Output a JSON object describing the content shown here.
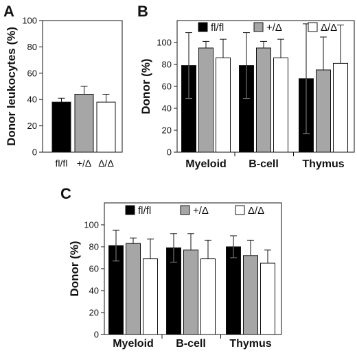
{
  "colors": {
    "fl_fl": "#000000",
    "het": "#a6a6a6",
    "null": "#ffffff",
    "stroke": "#111111"
  },
  "chart_data": [
    {
      "panel": "A",
      "type": "bar",
      "ylabel": "Donor leukocytes (%)",
      "ylim": [
        0,
        100
      ],
      "yticks": [
        0,
        20,
        40,
        60,
        80,
        100
      ],
      "categories": [
        "fl/fl",
        "+/Δ",
        "Δ/Δ"
      ],
      "values": [
        38,
        44,
        38
      ],
      "errors": [
        3,
        6,
        6
      ],
      "legend": "none"
    },
    {
      "panel": "B",
      "type": "bar",
      "ylabel": "Donor (%)",
      "ylim": [
        0,
        120
      ],
      "yticks": [
        0,
        20,
        40,
        60,
        80,
        100
      ],
      "categories": [
        "Myeloid",
        "B-cell",
        "Thymus"
      ],
      "series": [
        {
          "name": "fl/fl",
          "values": [
            79,
            79,
            67
          ],
          "errors": [
            30,
            30,
            50
          ]
        },
        {
          "name": "+/Δ",
          "values": [
            95,
            95,
            75
          ],
          "errors": [
            6,
            6,
            30
          ]
        },
        {
          "name": "Δ/Δ",
          "values": [
            86,
            86,
            81
          ],
          "errors": [
            17,
            17,
            35
          ]
        }
      ],
      "legend": "top"
    },
    {
      "panel": "C",
      "type": "bar",
      "ylabel": "Donor (%)",
      "ylim": [
        0,
        120
      ],
      "yticks": [
        0,
        20,
        40,
        60,
        80,
        100
      ],
      "categories": [
        "Myeloid",
        "B-cell",
        "Thymus"
      ],
      "series": [
        {
          "name": "fl/fl",
          "values": [
            81,
            79,
            80
          ],
          "errors": [
            14,
            13,
            10
          ]
        },
        {
          "name": "+/Δ",
          "values": [
            83,
            77,
            72
          ],
          "errors": [
            5,
            15,
            14
          ]
        },
        {
          "name": "Δ/Δ",
          "values": [
            69,
            69,
            65
          ],
          "errors": [
            18,
            17,
            12
          ]
        }
      ],
      "legend": "top"
    }
  ]
}
